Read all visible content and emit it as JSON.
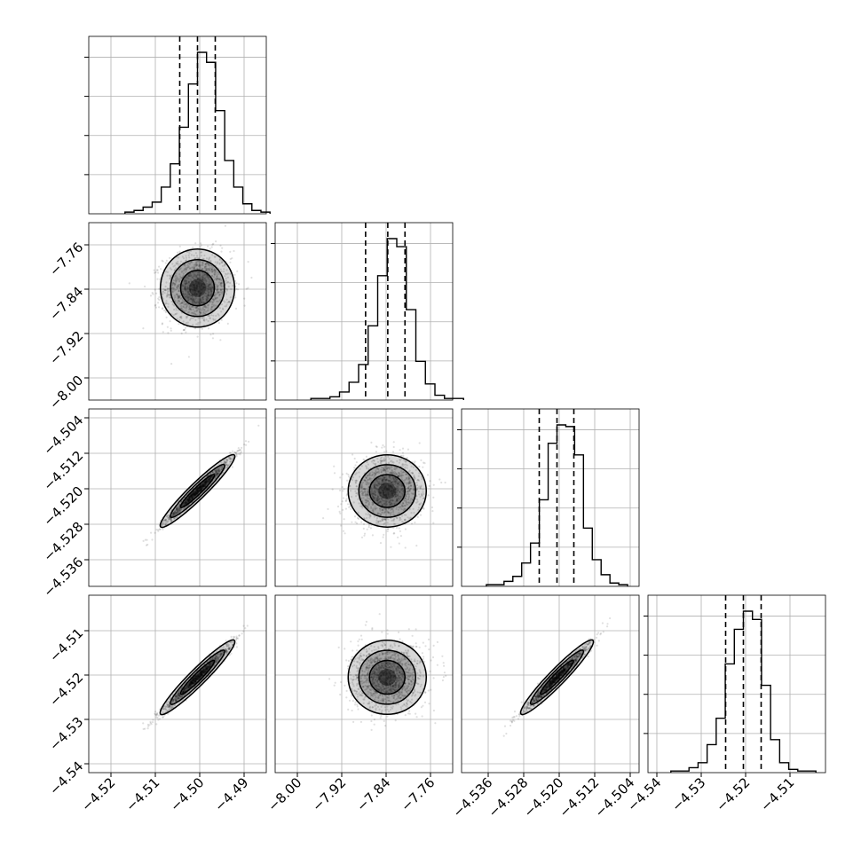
{
  "chart_data": {
    "type": "corner",
    "colors": {
      "ink": "#000000",
      "grid": "#b0b0b0",
      "hist": "#000000",
      "points": "#000000"
    },
    "grid": true,
    "params": [
      {
        "range": [
          -4.525,
          -4.485
        ],
        "ticks": [
          -4.52,
          -4.51,
          -4.5,
          -4.49
        ],
        "tick_labels": [
          "−4.52",
          "−4.51",
          "−4.50",
          "−4.49"
        ],
        "quantiles": [
          -4.5045,
          -4.5005,
          -4.4965
        ],
        "hist": [
          1,
          2,
          4,
          7,
          16,
          30,
          52,
          78,
          97,
          91,
          62,
          32,
          16,
          6,
          2,
          1
        ],
        "center": -4.5005,
        "sd": 0.0038
      },
      {
        "range": [
          -8.04,
          -7.72
        ],
        "ticks": [
          -8.0,
          -7.92,
          -7.84,
          -7.76
        ],
        "tick_labels": [
          "−8.00",
          "−7.92",
          "−7.84",
          "−7.76"
        ],
        "quantiles": [
          -7.877,
          -7.837,
          -7.806
        ],
        "hist": [
          1,
          1,
          2,
          5,
          11,
          22,
          46,
          77,
          100,
          95,
          56,
          24,
          10,
          3,
          1,
          1
        ],
        "center": -7.838,
        "sd": 0.032
      },
      {
        "range": [
          -4.542,
          -4.502
        ],
        "ticks": [
          -4.536,
          -4.528,
          -4.52,
          -4.512,
          -4.504
        ],
        "tick_labels": [
          "−4.536",
          "−4.528",
          "−4.520",
          "−4.512",
          "−4.504"
        ],
        "quantiles": [
          -4.5245,
          -4.5205,
          -4.5167
        ],
        "hist": [
          1,
          1,
          3,
          6,
          14,
          26,
          52,
          86,
          97,
          96,
          79,
          35,
          16,
          7,
          2,
          1
        ],
        "center": -4.5205,
        "sd": 0.0037
      },
      {
        "range": [
          -4.542,
          -4.502
        ],
        "ticks": [
          -4.54,
          -4.53,
          -4.52,
          -4.51
        ],
        "tick_labels": [
          "−4.54",
          "−4.53",
          "−4.52",
          "−4.51"
        ],
        "quantiles": [
          -4.5245,
          -4.5205,
          -4.5165
        ],
        "hist": [
          1,
          1,
          3,
          6,
          17,
          33,
          66,
          87,
          98,
          93,
          53,
          20,
          6,
          2,
          1,
          1
        ],
        "center": -4.5205,
        "sd": 0.0038
      }
    ],
    "correlations": [
      [
        0,
        1,
        0.05
      ],
      [
        0,
        2,
        0.98
      ],
      [
        1,
        2,
        0.05
      ],
      [
        0,
        3,
        0.98
      ],
      [
        1,
        3,
        0.05
      ],
      [
        2,
        3,
        0.98
      ]
    ]
  }
}
